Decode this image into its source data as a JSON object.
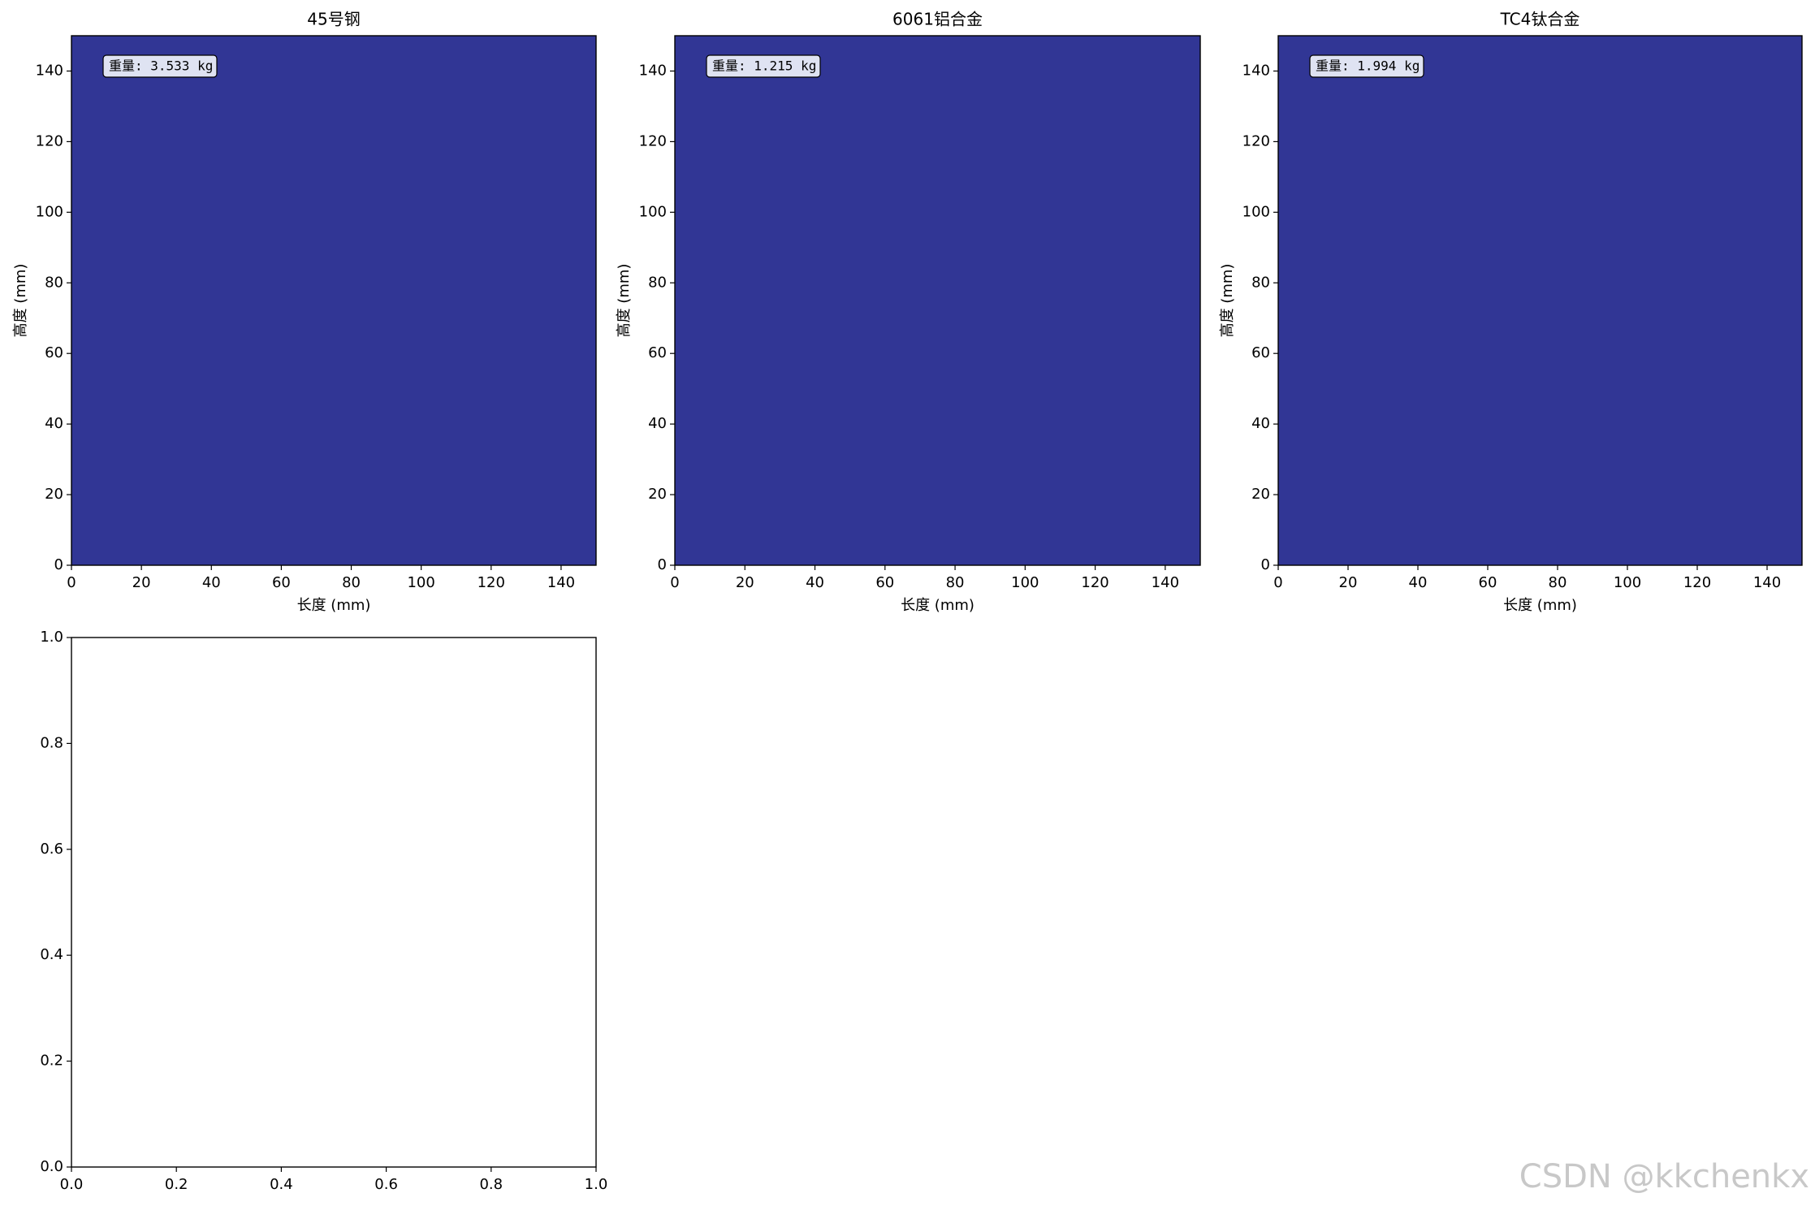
{
  "chart_data": [
    {
      "type": "fill",
      "title": "45号钢",
      "xlabel": "长度 (mm)",
      "ylabel": "高度 (mm)",
      "annotation": "重量: 3.533 kg",
      "color": "#313695",
      "fill_x": [
        0,
        150
      ],
      "fill_y": [
        0,
        150
      ],
      "xlim": [
        0,
        150
      ],
      "ylim": [
        0,
        150
      ],
      "xticks": [
        0,
        20,
        40,
        60,
        80,
        100,
        120,
        140
      ],
      "yticks": [
        0,
        20,
        40,
        60,
        80,
        100,
        120,
        140
      ]
    },
    {
      "type": "fill",
      "title": "6061铝合金",
      "xlabel": "长度 (mm)",
      "ylabel": "高度 (mm)",
      "annotation": "重量: 1.215 kg",
      "color": "#313695",
      "fill_x": [
        0,
        150
      ],
      "fill_y": [
        0,
        150
      ],
      "xlim": [
        0,
        150
      ],
      "ylim": [
        0,
        150
      ],
      "xticks": [
        0,
        20,
        40,
        60,
        80,
        100,
        120,
        140
      ],
      "yticks": [
        0,
        20,
        40,
        60,
        80,
        100,
        120,
        140
      ]
    },
    {
      "type": "fill",
      "title": "TC4钛合金",
      "xlabel": "长度 (mm)",
      "ylabel": "高度 (mm)",
      "annotation": "重量: 1.994 kg",
      "color": "#313695",
      "fill_x": [
        0,
        150
      ],
      "fill_y": [
        0,
        150
      ],
      "xlim": [
        0,
        150
      ],
      "ylim": [
        0,
        150
      ],
      "xticks": [
        0,
        20,
        40,
        60,
        80,
        100,
        120,
        140
      ],
      "yticks": [
        0,
        20,
        40,
        60,
        80,
        100,
        120,
        140
      ]
    },
    {
      "type": "blank",
      "xlim": [
        0,
        1
      ],
      "ylim": [
        0,
        1
      ],
      "xticks": [
        {
          "value": 0,
          "label": "0.0"
        },
        {
          "value": 0.2,
          "label": "0.2"
        },
        {
          "value": 0.4,
          "label": "0.4"
        },
        {
          "value": 0.6,
          "label": "0.6"
        },
        {
          "value": 0.8,
          "label": "0.8"
        },
        {
          "value": 1,
          "label": "1.0"
        }
      ],
      "yticks": [
        {
          "value": 0,
          "label": "0.0"
        },
        {
          "value": 0.2,
          "label": "0.2"
        },
        {
          "value": 0.4,
          "label": "0.4"
        },
        {
          "value": 0.6,
          "label": "0.6"
        },
        {
          "value": 0.8,
          "label": "0.8"
        },
        {
          "value": 1,
          "label": "1.0"
        }
      ]
    }
  ],
  "watermark": "CSDN @kkchenkx"
}
